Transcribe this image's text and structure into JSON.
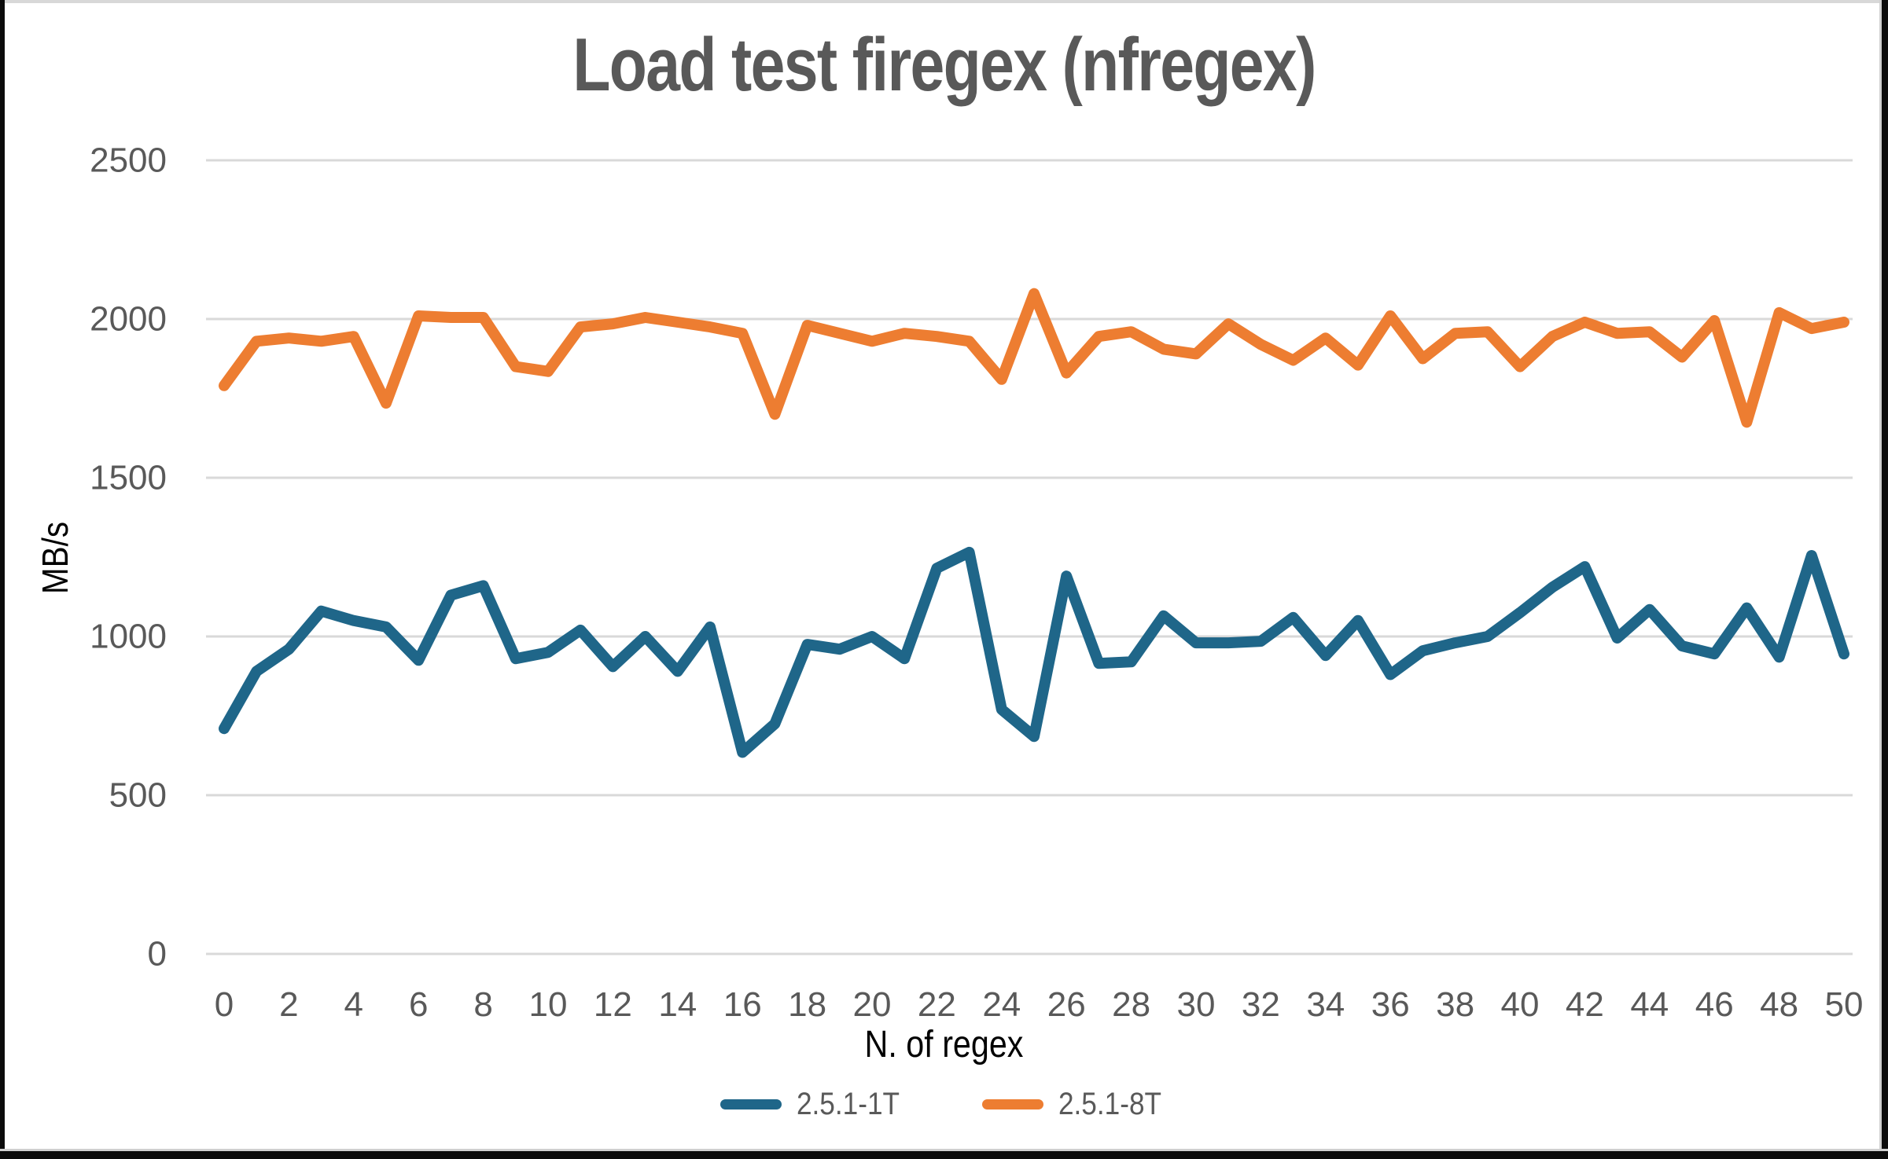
{
  "chart_data": {
    "type": "line",
    "title": "Load test firegex (nfregex)",
    "xlabel": "N. of regex",
    "ylabel": "MB/s",
    "ylim": [
      0,
      2500
    ],
    "yticks": [
      0,
      500,
      1000,
      1500,
      2000,
      2500
    ],
    "xticks": [
      0,
      2,
      4,
      6,
      8,
      10,
      12,
      14,
      16,
      18,
      20,
      22,
      24,
      26,
      28,
      30,
      32,
      34,
      36,
      38,
      40,
      42,
      44,
      46,
      48,
      50
    ],
    "x": [
      0,
      1,
      2,
      3,
      4,
      5,
      6,
      7,
      8,
      9,
      10,
      11,
      12,
      13,
      14,
      15,
      16,
      17,
      18,
      19,
      20,
      21,
      22,
      23,
      24,
      25,
      26,
      27,
      28,
      29,
      30,
      31,
      32,
      33,
      34,
      35,
      36,
      37,
      38,
      39,
      40,
      41,
      42,
      43,
      44,
      45,
      46,
      47,
      48,
      49,
      50
    ],
    "grid": "horizontal",
    "legend_position": "bottom",
    "grid_color": "#d9d9d9",
    "tick_color": "#595959",
    "title_color": "#595959",
    "series": [
      {
        "name": "2.5.1-1T",
        "color": "#1f6689",
        "values": [
          710,
          890,
          960,
          1080,
          1050,
          1030,
          925,
          1130,
          1160,
          930,
          950,
          1020,
          905,
          1000,
          890,
          1030,
          635,
          725,
          975,
          960,
          1000,
          930,
          1215,
          1265,
          770,
          685,
          1190,
          915,
          920,
          1065,
          980,
          980,
          985,
          1060,
          940,
          1050,
          880,
          955,
          980,
          1000,
          1075,
          1155,
          1220,
          995,
          1085,
          970,
          945,
          1090,
          935,
          1255,
          945
        ]
      },
      {
        "name": "2.5.1-8T",
        "color": "#ed7d31",
        "values": [
          1790,
          1930,
          1940,
          1930,
          1945,
          1735,
          2010,
          2005,
          2005,
          1850,
          1835,
          1975,
          1985,
          2005,
          1990,
          1975,
          1955,
          1700,
          1980,
          1955,
          1930,
          1955,
          1945,
          1930,
          1810,
          2080,
          1830,
          1945,
          1960,
          1905,
          1890,
          1985,
          1920,
          1870,
          1940,
          1855,
          2010,
          1875,
          1955,
          1960,
          1850,
          1945,
          1990,
          1955,
          1960,
          1880,
          1995,
          1675,
          2020,
          1970,
          1990
        ]
      }
    ]
  }
}
